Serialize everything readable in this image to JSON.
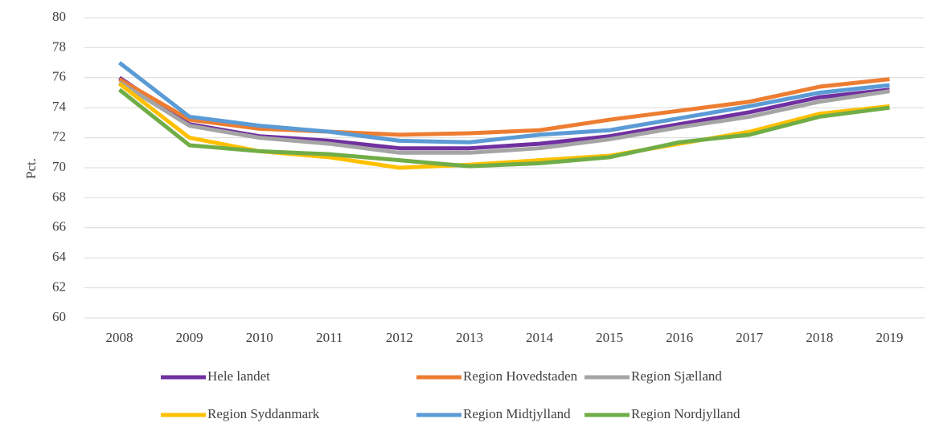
{
  "chart_data": {
    "type": "line",
    "y_label": "Pct.",
    "categories": [
      "2008",
      "2009",
      "2010",
      "2011",
      "2012",
      "2013",
      "2014",
      "2015",
      "2016",
      "2017",
      "2018",
      "2019"
    ],
    "series": [
      {
        "name": "Hele landet",
        "color": "#7030a0",
        "values": [
          76.0,
          72.9,
          72.1,
          71.8,
          71.3,
          71.3,
          71.6,
          72.1,
          72.9,
          73.7,
          74.7,
          75.2
        ]
      },
      {
        "name": "Region Hovedstaden",
        "color": "#ed7d31",
        "values": [
          75.9,
          73.2,
          72.6,
          72.4,
          72.2,
          72.3,
          72.5,
          73.2,
          73.8,
          74.4,
          75.4,
          75.9
        ]
      },
      {
        "name": "Region Sjælland",
        "color": "#a5a5a5",
        "values": [
          75.7,
          72.8,
          72.0,
          71.6,
          71.0,
          71.0,
          71.3,
          71.9,
          72.7,
          73.4,
          74.4,
          75.1
        ]
      },
      {
        "name": "Region Syddanmark",
        "color": "#ffc000",
        "values": [
          75.6,
          72.0,
          71.1,
          70.7,
          70.0,
          70.2,
          70.5,
          70.8,
          71.6,
          72.4,
          73.6,
          74.1
        ]
      },
      {
        "name": "Region Midtjylland",
        "color": "#5b9bd5",
        "values": [
          77.0,
          73.4,
          72.8,
          72.4,
          71.8,
          71.7,
          72.2,
          72.5,
          73.3,
          74.1,
          75.0,
          75.5
        ]
      },
      {
        "name": "Region Nordjylland",
        "color": "#70ad47",
        "values": [
          75.2,
          71.5,
          71.1,
          70.9,
          70.5,
          70.1,
          70.3,
          70.7,
          71.7,
          72.2,
          73.4,
          74.0
        ]
      }
    ],
    "ylim": [
      60,
      80
    ],
    "yticks": [
      60,
      62,
      64,
      66,
      68,
      70,
      72,
      74,
      76,
      78,
      80
    ],
    "grid": true,
    "legend": "bottom"
  }
}
